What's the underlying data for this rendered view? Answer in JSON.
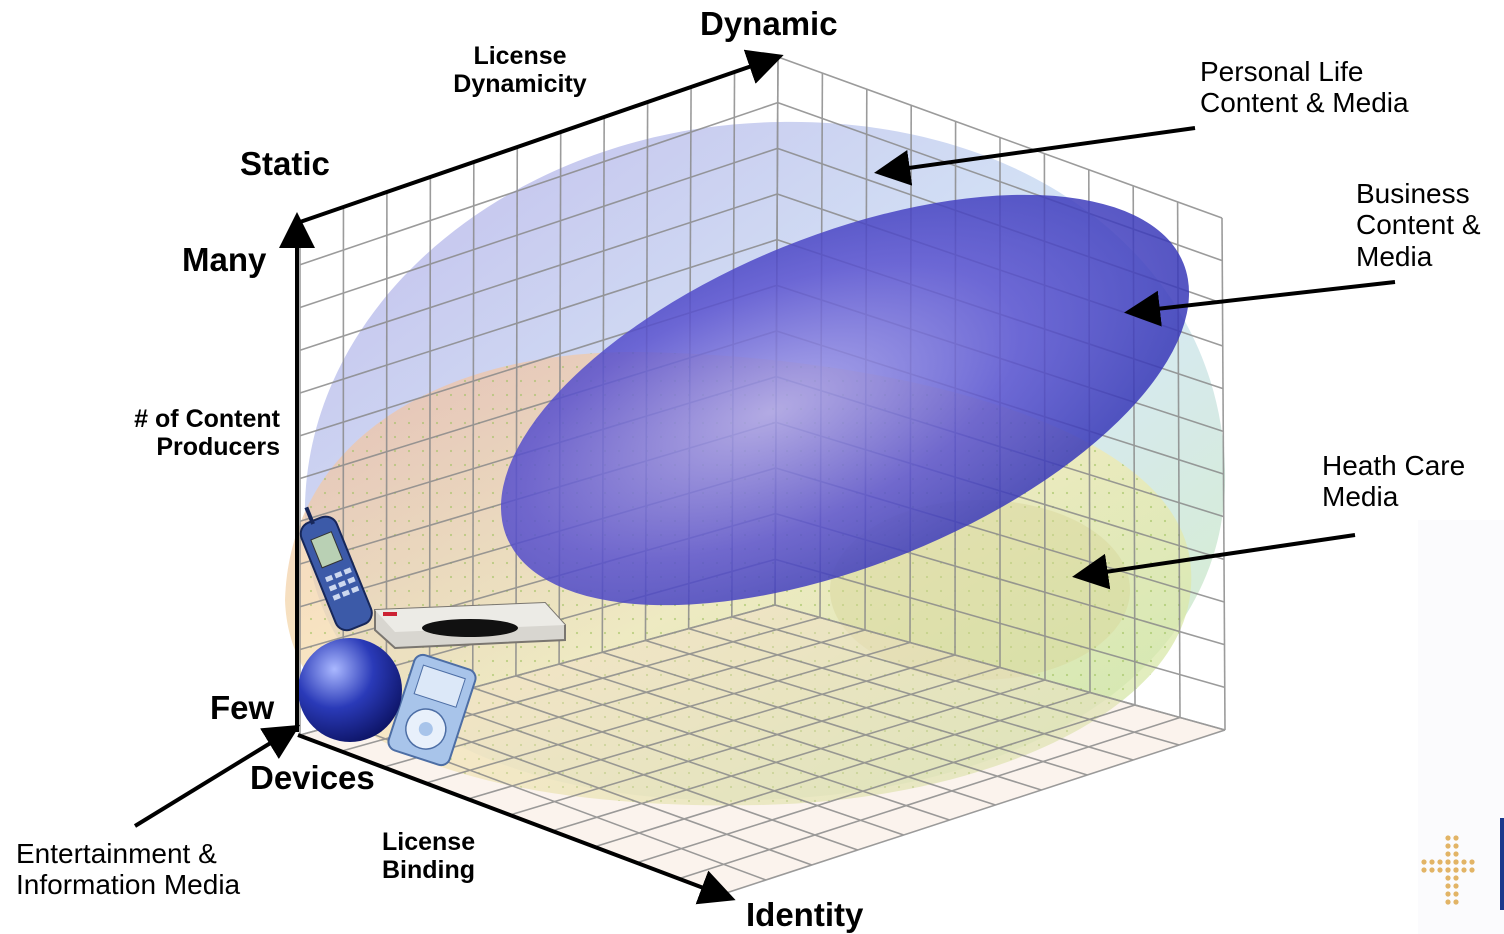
{
  "axes": {
    "license_dynamicity": {
      "name_lines": [
        "License",
        "Dynamicity"
      ],
      "start_label": "Static",
      "end_label": "Dynamic"
    },
    "content_producers": {
      "name_lines": [
        "# of Content",
        "Producers"
      ],
      "top_label": "Many",
      "bottom_label": "Few"
    },
    "license_binding": {
      "name_lines": [
        "License",
        "Binding"
      ],
      "start_label": "Devices",
      "end_label": "Identity"
    }
  },
  "regions": [
    {
      "id": "personal",
      "lines": [
        "Personal Life",
        "Content & Media"
      ],
      "color": "#8e8ee0"
    },
    {
      "id": "business",
      "lines": [
        "Business",
        "Content &",
        "Media"
      ],
      "color": "#3c3cc0"
    },
    {
      "id": "health",
      "lines": [
        "Heath Care",
        "Media"
      ],
      "color": "#c9cf6a"
    },
    {
      "id": "entertainment",
      "lines": [
        "Entertainment &",
        "Information Media"
      ],
      "color": "#e0a070"
    }
  ],
  "device_icons": [
    "mobile-phone-icon",
    "set-top-box-icon",
    "media-player-icon",
    "globe-sphere-icon"
  ],
  "colors": {
    "grid": "#8a8a8a",
    "axis": "#000000",
    "sphere_violet": "#b0a0e6",
    "sphere_green": "#cfe6a6",
    "sphere_peach": "#f2c0a0",
    "business_ellipse": "#4a4ac8",
    "logo_dots": "#e2b466",
    "logo_bar": "#1a3a8c"
  }
}
